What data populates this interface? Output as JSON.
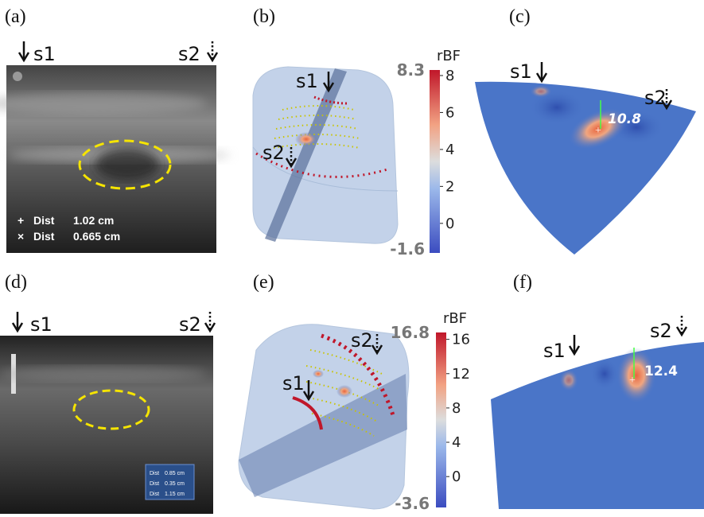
{
  "panels": [
    {
      "label": "(a)",
      "s1": "s1",
      "s2": "s2",
      "measurements": [
        {
          "label": "Dist",
          "value": "1.02 cm"
        },
        {
          "label": "Dist",
          "value": "0.665 cm"
        }
      ]
    },
    {
      "label": "(b)",
      "s1": "s1",
      "s2": "s2",
      "colorbar": {
        "title": "rBF",
        "max": 8.3,
        "min": -1.6,
        "ticks": [
          0,
          2,
          4,
          6,
          8
        ]
      }
    },
    {
      "label": "(c)",
      "s1": "s1",
      "s2": "s2",
      "peak": 10.8
    },
    {
      "label": "(d)",
      "s1": "s1",
      "s2": "s2",
      "measurements": [
        {
          "label": "Dist",
          "value": "0.85 cm"
        },
        {
          "label": "Dist",
          "value": "0.35 cm"
        },
        {
          "label": "Dist",
          "value": "1.15 cm"
        }
      ]
    },
    {
      "label": "(e)",
      "s1": "s1",
      "s2": "s2",
      "colorbar": {
        "title": "rBF",
        "max": 16.8,
        "min": -3.6,
        "ticks": [
          0,
          4,
          8,
          12,
          16
        ]
      }
    },
    {
      "label": "(f)",
      "s1": "s1",
      "s2": "s2",
      "peak": 12.4
    }
  ]
}
